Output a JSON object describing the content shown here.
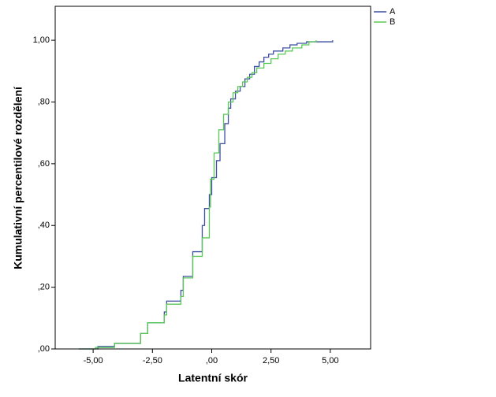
{
  "chart_data": {
    "type": "step",
    "x_label": "Latentní skór",
    "y_label": "Kumulativní percentilové rozdělení",
    "xlim": [
      -6.6,
      6.7
    ],
    "ylim": [
      0,
      1.11
    ],
    "xticks": [
      {
        "value": -5,
        "label": "-5,00"
      },
      {
        "value": -2.5,
        "label": "-2,50"
      },
      {
        "value": 0,
        "label": ",00"
      },
      {
        "value": 2.5,
        "label": "2,50"
      },
      {
        "value": 5,
        "label": "5,00"
      }
    ],
    "yticks": [
      {
        "value": 0,
        "label": ",00"
      },
      {
        "value": 0.2,
        "label": ",20"
      },
      {
        "value": 0.4,
        "label": ",40"
      },
      {
        "value": 0.6,
        "label": ",60"
      },
      {
        "value": 0.8,
        "label": ",80"
      },
      {
        "value": 1,
        "label": "1,00"
      }
    ],
    "series": [
      {
        "name": "A",
        "color": "#3e4fa0",
        "x": [
          -5.6,
          -4.8,
          -4.1,
          -3.0,
          -2.7,
          -2.0,
          -1.9,
          -1.3,
          -1.2,
          -0.8,
          -0.4,
          -0.3,
          -0.1,
          0.0,
          0.2,
          0.35,
          0.55,
          0.7,
          0.8,
          1.0,
          1.2,
          1.4,
          1.6,
          1.8,
          2.0,
          2.2,
          2.4,
          2.6,
          3.0,
          3.3,
          3.6,
          4.0,
          5.1
        ],
        "values": [
          0,
          0.008,
          0.018,
          0.05,
          0.085,
          0.12,
          0.155,
          0.19,
          0.235,
          0.315,
          0.4,
          0.455,
          0.5,
          0.555,
          0.61,
          0.665,
          0.73,
          0.78,
          0.81,
          0.835,
          0.85,
          0.875,
          0.89,
          0.915,
          0.93,
          0.945,
          0.955,
          0.965,
          0.975,
          0.985,
          0.99,
          0.995,
          1.0
        ]
      },
      {
        "name": "B",
        "color": "#5ac857",
        "x": [
          -5.6,
          -4.9,
          -4.1,
          -3.0,
          -2.7,
          -2.0,
          -1.9,
          -1.3,
          -1.2,
          -0.8,
          -0.4,
          -0.1,
          -0.05,
          0.1,
          0.3,
          0.5,
          0.7,
          0.9,
          1.1,
          1.3,
          1.5,
          1.7,
          1.9,
          2.2,
          2.5,
          2.8,
          3.1,
          3.4,
          3.8,
          4.1,
          4.4
        ],
        "values": [
          0,
          0.005,
          0.018,
          0.05,
          0.085,
          0.11,
          0.145,
          0.17,
          0.23,
          0.3,
          0.36,
          0.46,
          0.55,
          0.635,
          0.71,
          0.76,
          0.8,
          0.83,
          0.85,
          0.865,
          0.88,
          0.895,
          0.91,
          0.925,
          0.94,
          0.955,
          0.965,
          0.975,
          0.985,
          0.995,
          1.0
        ]
      }
    ]
  }
}
